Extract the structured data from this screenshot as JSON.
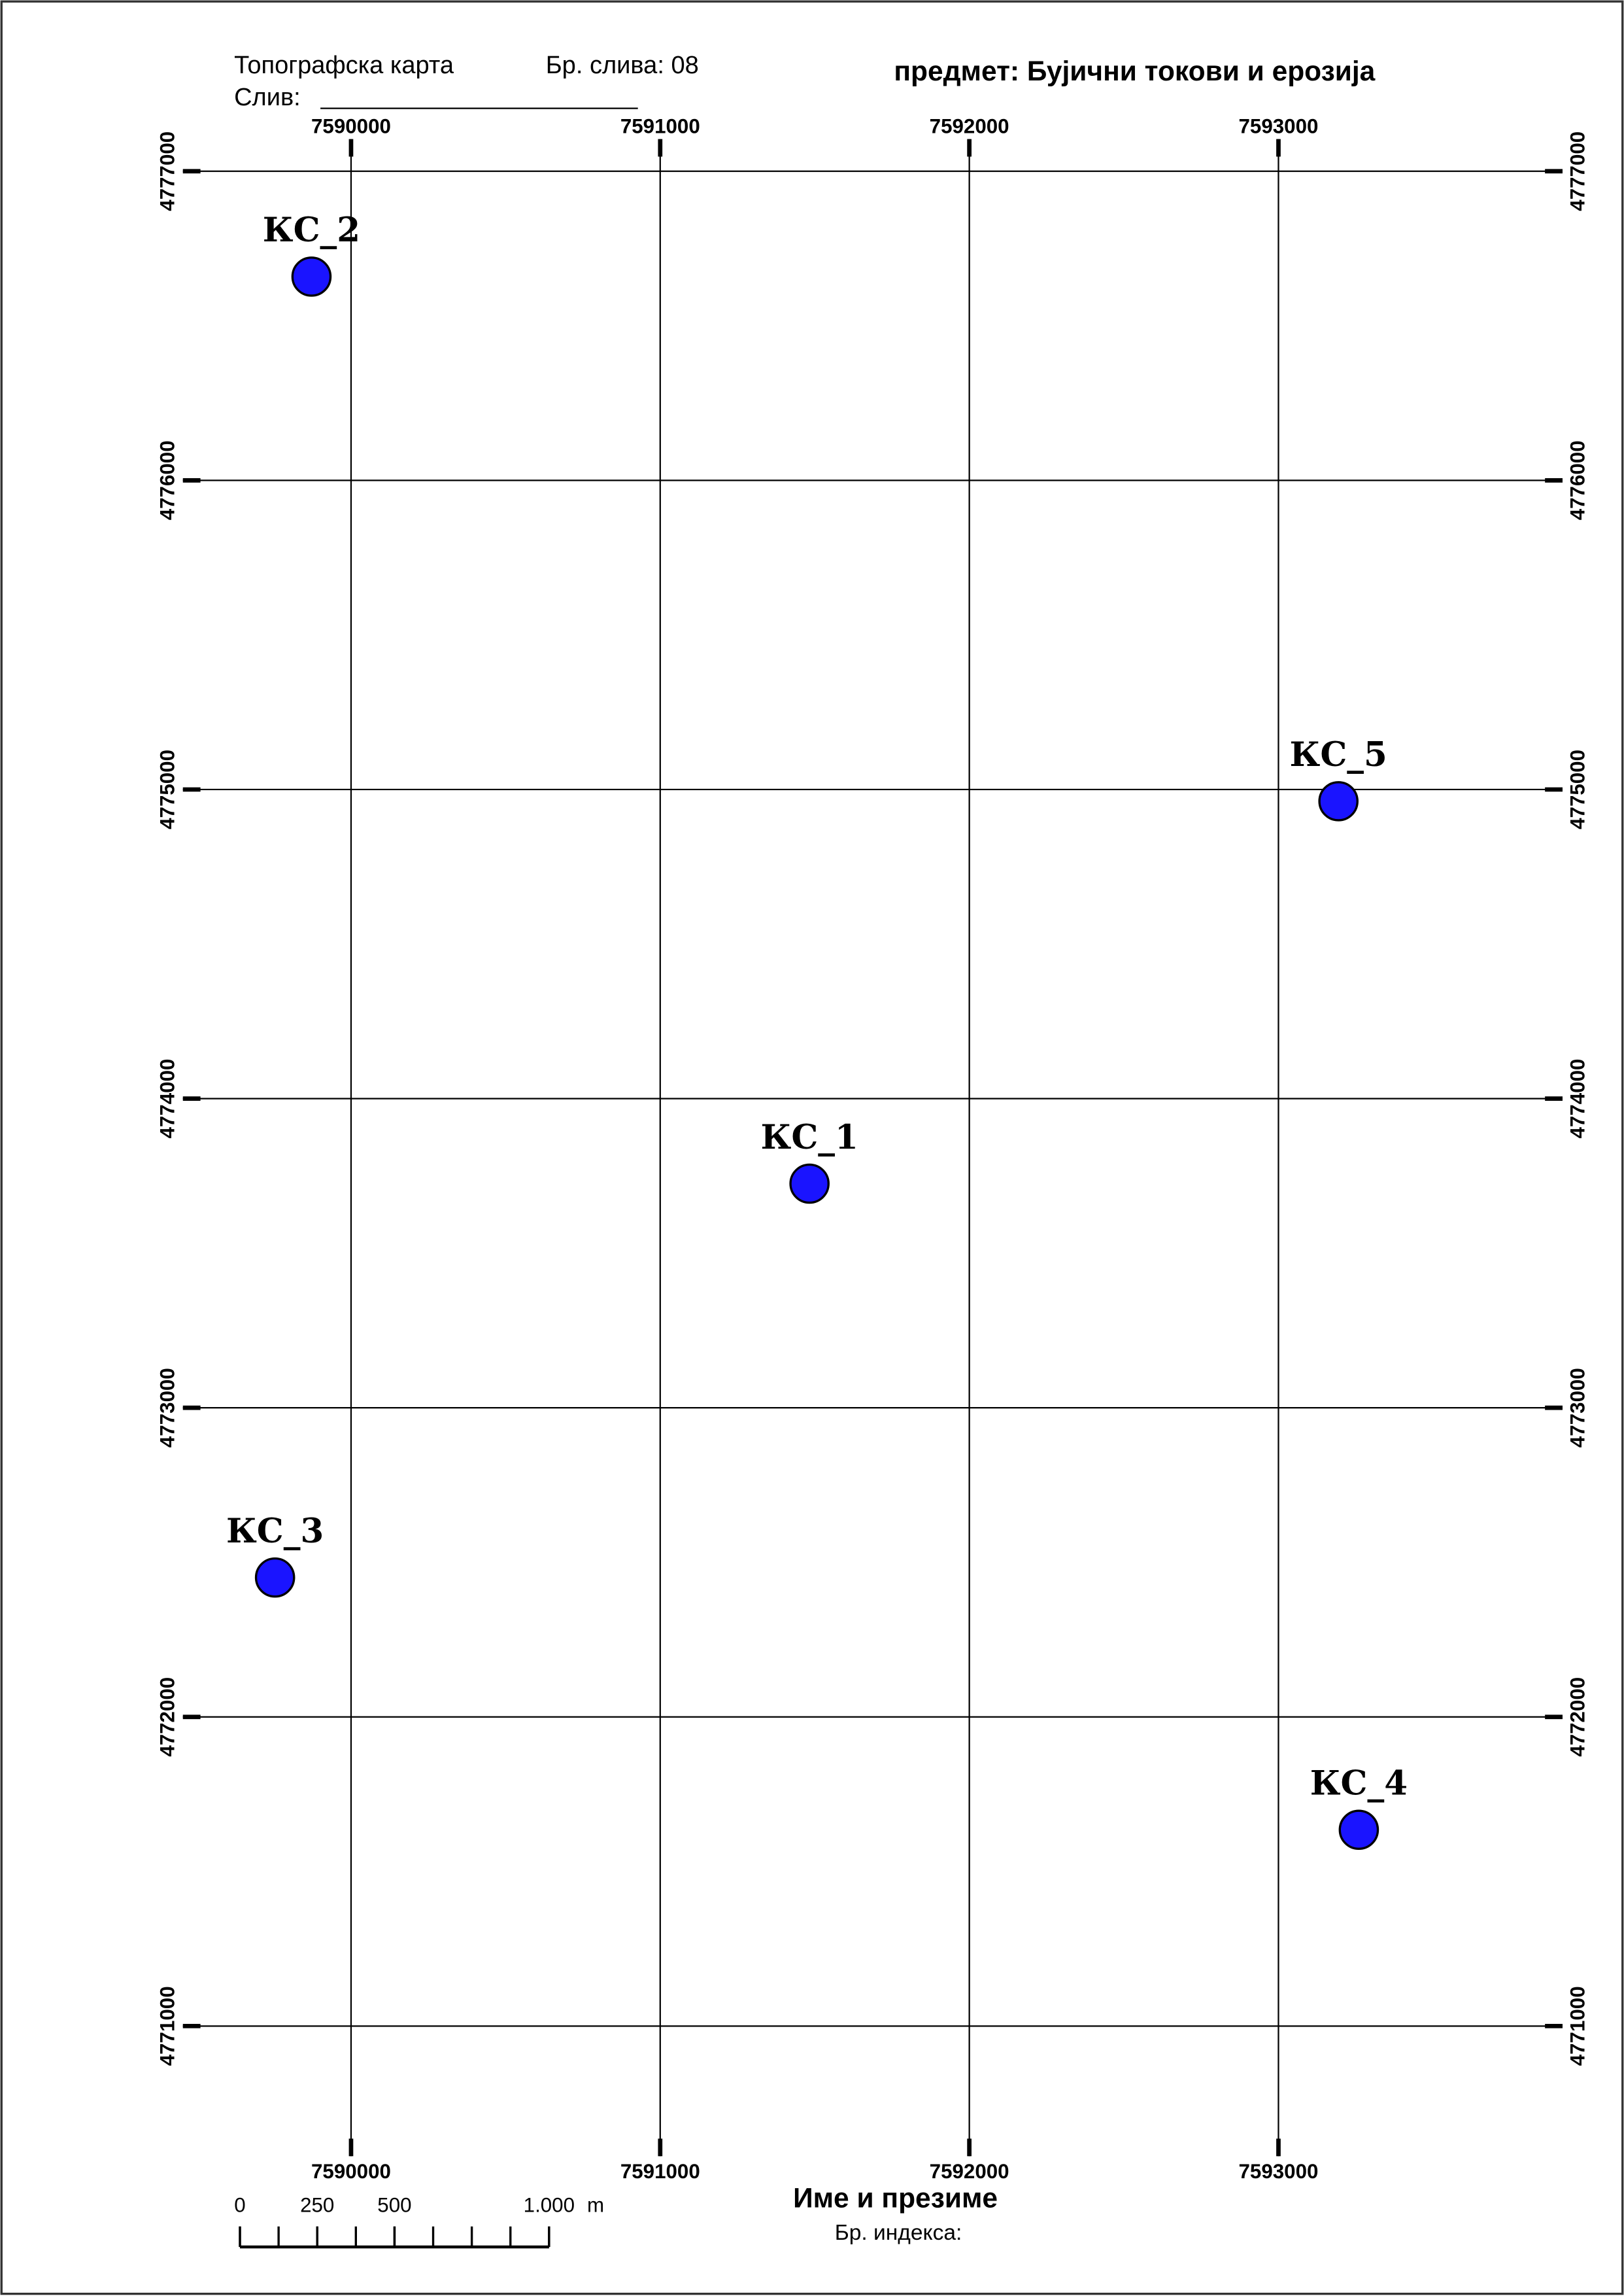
{
  "map": {
    "header": {
      "left": "Топографска карта",
      "basin_no": "Бр. слива: 08",
      "basin": "Слив:",
      "subject": "предмет: Бујични токови и ерозија"
    },
    "footer": {
      "name": "Име и презиме",
      "index": "Бр. индекса:"
    },
    "xlim": [
      7589456,
      7593919
    ],
    "ylim": [
      4770579,
      4777104
    ],
    "xticks": [
      7590000,
      7591000,
      7592000,
      7593000
    ],
    "yticks": [
      4777000,
      4776000,
      4775000,
      4774000,
      4773000,
      4772000,
      4771000
    ],
    "point_color": "#1a14ff",
    "points": [
      {
        "name": "КС_2",
        "x": 7589872,
        "y": 4776659
      },
      {
        "name": "КС_5",
        "x": 7593194,
        "y": 4774962
      },
      {
        "name": "КС_1",
        "x": 7591483,
        "y": 4773725
      },
      {
        "name": "КС_3",
        "x": 7589754,
        "y": 4772451
      },
      {
        "name": "КС_4",
        "x": 7593260,
        "y": 4771635
      }
    ],
    "scale_bar": {
      "ticks": [
        0,
        250,
        500,
        {
          "value": 1000,
          "label": "1.000"
        }
      ],
      "unit": "m"
    }
  }
}
